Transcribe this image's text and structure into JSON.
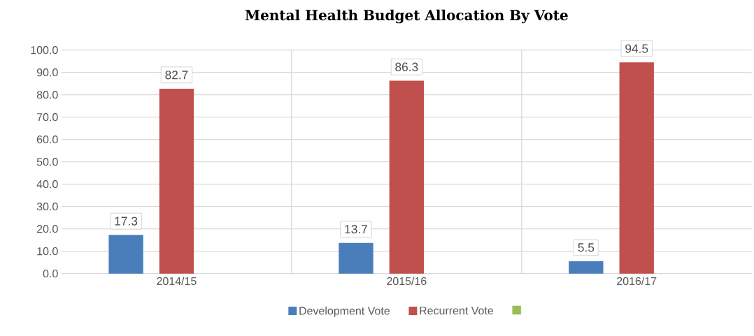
{
  "chart_data": {
    "type": "bar",
    "title": "Mental Health Budget Allocation By Vote",
    "categories": [
      "2014/15",
      "2015/16",
      "2016/17"
    ],
    "series": [
      {
        "name": "Development Vote",
        "color": "#4a7ebb",
        "values": [
          17.3,
          13.7,
          5.5
        ]
      },
      {
        "name": "Recurrent  Vote",
        "color": "#c0504d",
        "values": [
          82.7,
          86.3,
          94.5
        ]
      },
      {
        "color": "#9bbb59",
        "values": [
          null,
          null,
          null
        ]
      }
    ],
    "ylim": [
      0,
      100
    ],
    "yticks": [
      {
        "value": 0,
        "label": "0.0"
      },
      {
        "value": 10,
        "label": "10.0"
      },
      {
        "value": 20,
        "label": "20.0"
      },
      {
        "value": 30,
        "label": "30.0"
      },
      {
        "value": 40,
        "label": "40.0"
      },
      {
        "value": 50,
        "label": "50.0"
      },
      {
        "value": 60,
        "label": "60.0"
      },
      {
        "value": 70,
        "label": "70.0"
      },
      {
        "value": 80,
        "label": "80.0"
      },
      {
        "value": 90,
        "label": "90.0"
      },
      {
        "value": 100,
        "label": "100.0"
      }
    ],
    "grid": "y",
    "legend": "bottom",
    "data_labels": true
  }
}
